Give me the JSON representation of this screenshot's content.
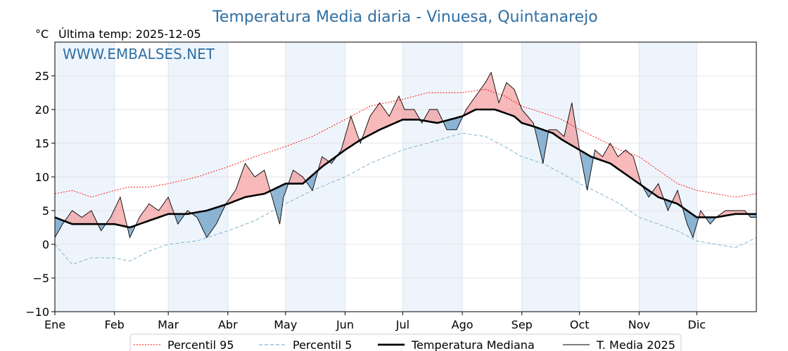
{
  "chart_data": {
    "type": "line",
    "title": "Temperatura Media diaria - Vinuesa, Quintanarejo",
    "unit_label": "°C",
    "last_temp_label": "Última temp: 2025-12-05",
    "watermark": "WWW.EMBALSES.NET",
    "ylim": [
      -10,
      30
    ],
    "y_ticks": [
      -10,
      -5,
      0,
      5,
      10,
      15,
      20,
      25
    ],
    "y_tick_labels": [
      "−10",
      "−5",
      "0",
      "5",
      "10",
      "15",
      "20",
      "25"
    ],
    "x_domain": [
      1,
      366
    ],
    "months": [
      {
        "label": "Ene",
        "start": 1
      },
      {
        "label": "Feb",
        "start": 32
      },
      {
        "label": "Mar",
        "start": 60
      },
      {
        "label": "Abr",
        "start": 91
      },
      {
        "label": "May",
        "start": 121
      },
      {
        "label": "Jun",
        "start": 152
      },
      {
        "label": "Jul",
        "start": 182
      },
      {
        "label": "Ago",
        "start": 213
      },
      {
        "label": "Sep",
        "start": 244
      },
      {
        "label": "Oct",
        "start": 274
      },
      {
        "label": "Nov",
        "start": 305
      },
      {
        "label": "Dic",
        "start": 335
      }
    ],
    "series": [
      {
        "name": "Percentil 95",
        "color": "#ff0000",
        "style": "dotted",
        "anchors": [
          [
            1,
            7.5
          ],
          [
            10,
            8
          ],
          [
            20,
            7
          ],
          [
            32,
            8
          ],
          [
            40,
            8.5
          ],
          [
            50,
            8.5
          ],
          [
            60,
            9
          ],
          [
            75,
            10
          ],
          [
            91,
            11.5
          ],
          [
            105,
            13
          ],
          [
            121,
            14.5
          ],
          [
            135,
            16
          ],
          [
            152,
            18.5
          ],
          [
            165,
            20.5
          ],
          [
            182,
            21.5
          ],
          [
            195,
            22.5
          ],
          [
            213,
            22.5
          ],
          [
            225,
            23
          ],
          [
            235,
            22
          ],
          [
            244,
            20.5
          ],
          [
            255,
            19.5
          ],
          [
            265,
            18.5
          ],
          [
            274,
            17
          ],
          [
            285,
            15.5
          ],
          [
            295,
            14
          ],
          [
            305,
            13
          ],
          [
            315,
            11
          ],
          [
            325,
            9
          ],
          [
            335,
            8
          ],
          [
            345,
            7.5
          ],
          [
            355,
            7
          ],
          [
            366,
            7.5
          ]
        ]
      },
      {
        "name": "Percentil 5",
        "color": "#7fb6cf",
        "style": "dashed",
        "anchors": [
          [
            1,
            0
          ],
          [
            10,
            -3
          ],
          [
            20,
            -2
          ],
          [
            32,
            -2
          ],
          [
            40,
            -2.5
          ],
          [
            50,
            -1
          ],
          [
            60,
            0
          ],
          [
            75,
            0.5
          ],
          [
            91,
            2
          ],
          [
            105,
            3.5
          ],
          [
            121,
            6
          ],
          [
            135,
            8
          ],
          [
            152,
            10
          ],
          [
            165,
            12
          ],
          [
            182,
            14
          ],
          [
            195,
            15
          ],
          [
            213,
            16.5
          ],
          [
            225,
            16
          ],
          [
            235,
            14.5
          ],
          [
            244,
            13
          ],
          [
            255,
            12
          ],
          [
            265,
            10.5
          ],
          [
            274,
            9
          ],
          [
            285,
            7.5
          ],
          [
            295,
            6
          ],
          [
            305,
            4
          ],
          [
            315,
            3
          ],
          [
            325,
            2
          ],
          [
            335,
            0.5
          ],
          [
            345,
            0
          ],
          [
            355,
            -0.5
          ],
          [
            366,
            1
          ]
        ]
      },
      {
        "name": "Temperatura Mediana",
        "color": "#000000",
        "style": "solid-thick",
        "anchors": [
          [
            1,
            4
          ],
          [
            10,
            3
          ],
          [
            20,
            3
          ],
          [
            32,
            3
          ],
          [
            40,
            2.5
          ],
          [
            50,
            3.5
          ],
          [
            60,
            4.5
          ],
          [
            70,
            4.5
          ],
          [
            80,
            5
          ],
          [
            91,
            6
          ],
          [
            100,
            7
          ],
          [
            110,
            7.5
          ],
          [
            121,
            9
          ],
          [
            130,
            9
          ],
          [
            140,
            11.5
          ],
          [
            152,
            14
          ],
          [
            160,
            15.5
          ],
          [
            170,
            17
          ],
          [
            182,
            18.5
          ],
          [
            190,
            18.5
          ],
          [
            200,
            18
          ],
          [
            213,
            19
          ],
          [
            220,
            20
          ],
          [
            230,
            20
          ],
          [
            240,
            19
          ],
          [
            244,
            18
          ],
          [
            250,
            17.5
          ],
          [
            260,
            16.5
          ],
          [
            265,
            15.5
          ],
          [
            274,
            14
          ],
          [
            280,
            13
          ],
          [
            290,
            12
          ],
          [
            300,
            10
          ],
          [
            305,
            9
          ],
          [
            315,
            7
          ],
          [
            325,
            6
          ],
          [
            335,
            4
          ],
          [
            345,
            4
          ],
          [
            355,
            4.5
          ],
          [
            366,
            4.5
          ]
        ]
      },
      {
        "name": "T. Media 2025",
        "color": "#000000",
        "style": "solid-thin",
        "anchors": [
          [
            1,
            1
          ],
          [
            5,
            3
          ],
          [
            10,
            5
          ],
          [
            15,
            4
          ],
          [
            20,
            5
          ],
          [
            25,
            2
          ],
          [
            30,
            4
          ],
          [
            35,
            7
          ],
          [
            40,
            1
          ],
          [
            45,
            4
          ],
          [
            50,
            6
          ],
          [
            55,
            5
          ],
          [
            60,
            7
          ],
          [
            65,
            3
          ],
          [
            70,
            5
          ],
          [
            75,
            4
          ],
          [
            80,
            1
          ],
          [
            85,
            3
          ],
          [
            90,
            6
          ],
          [
            95,
            8
          ],
          [
            100,
            12
          ],
          [
            105,
            10
          ],
          [
            110,
            11
          ],
          [
            115,
            6
          ],
          [
            118,
            3
          ],
          [
            120,
            7
          ],
          [
            125,
            11
          ],
          [
            130,
            10
          ],
          [
            135,
            8
          ],
          [
            140,
            13
          ],
          [
            145,
            12
          ],
          [
            150,
            14
          ],
          [
            155,
            19
          ],
          [
            160,
            15
          ],
          [
            165,
            19
          ],
          [
            170,
            21
          ],
          [
            175,
            19
          ],
          [
            180,
            22
          ],
          [
            183,
            20
          ],
          [
            188,
            20
          ],
          [
            192,
            18
          ],
          [
            196,
            20
          ],
          [
            200,
            20
          ],
          [
            205,
            17
          ],
          [
            210,
            17
          ],
          [
            215,
            20
          ],
          [
            220,
            22
          ],
          [
            225,
            24
          ],
          [
            228,
            25.5
          ],
          [
            232,
            21
          ],
          [
            236,
            24
          ],
          [
            240,
            23
          ],
          [
            244,
            20
          ],
          [
            250,
            18
          ],
          [
            255,
            12
          ],
          [
            258,
            17
          ],
          [
            262,
            17
          ],
          [
            266,
            16
          ],
          [
            270,
            21
          ],
          [
            274,
            14
          ],
          [
            278,
            8
          ],
          [
            282,
            14
          ],
          [
            286,
            13
          ],
          [
            290,
            15
          ],
          [
            294,
            13
          ],
          [
            298,
            14
          ],
          [
            302,
            13
          ],
          [
            306,
            9
          ],
          [
            310,
            7
          ],
          [
            315,
            9
          ],
          [
            320,
            5
          ],
          [
            325,
            8
          ],
          [
            330,
            3
          ],
          [
            333,
            1
          ],
          [
            337,
            5
          ],
          [
            342,
            3
          ],
          [
            345,
            4
          ],
          [
            350,
            5
          ],
          [
            355,
            5
          ],
          [
            360,
            5
          ],
          [
            363,
            4
          ],
          [
            366,
            4
          ]
        ]
      }
    ],
    "legend": [
      {
        "label": "Percentil 95",
        "color": "#ff0000",
        "style": "dotted"
      },
      {
        "label": "Percentil 5",
        "color": "#7fb6cf",
        "style": "dashed"
      },
      {
        "label": "Temperatura Mediana",
        "color": "#000000",
        "style": "solid-thick"
      },
      {
        "label": "T. Media 2025",
        "color": "#000000",
        "style": "solid-thin"
      }
    ],
    "fill_above_color": "#f08080",
    "fill_below_color": "#6a9ec5",
    "band_color": "#eef4fb"
  }
}
